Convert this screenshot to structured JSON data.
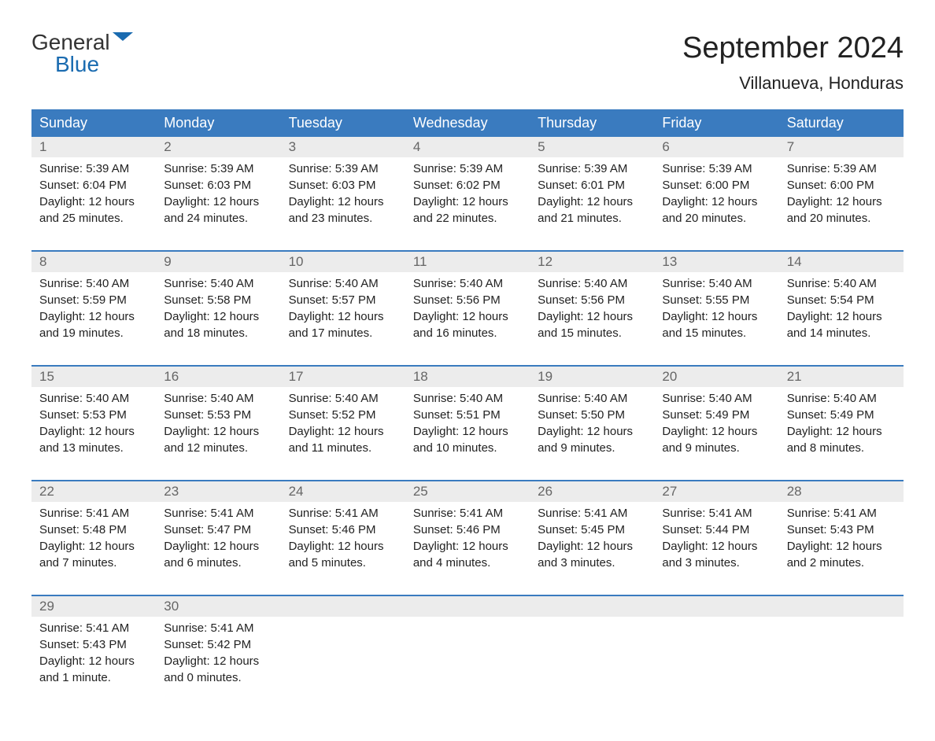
{
  "logo": {
    "top": "General",
    "bottom": "Blue",
    "top_color": "#333333",
    "bottom_color": "#1a6bb0",
    "flag_color": "#1a6bb0"
  },
  "header": {
    "month_title": "September 2024",
    "location": "Villanueva, Honduras"
  },
  "colors": {
    "header_bg": "#3a7bbf",
    "header_text": "#ffffff",
    "day_number_bg": "#ececec",
    "day_number_text": "#666666",
    "border": "#3a7bbf",
    "body_text": "#222222",
    "background": "#ffffff"
  },
  "day_names": [
    "Sunday",
    "Monday",
    "Tuesday",
    "Wednesday",
    "Thursday",
    "Friday",
    "Saturday"
  ],
  "weeks": [
    {
      "days": [
        {
          "num": "1",
          "sunrise": "Sunrise: 5:39 AM",
          "sunset": "Sunset: 6:04 PM",
          "daylight1": "Daylight: 12 hours",
          "daylight2": "and 25 minutes."
        },
        {
          "num": "2",
          "sunrise": "Sunrise: 5:39 AM",
          "sunset": "Sunset: 6:03 PM",
          "daylight1": "Daylight: 12 hours",
          "daylight2": "and 24 minutes."
        },
        {
          "num": "3",
          "sunrise": "Sunrise: 5:39 AM",
          "sunset": "Sunset: 6:03 PM",
          "daylight1": "Daylight: 12 hours",
          "daylight2": "and 23 minutes."
        },
        {
          "num": "4",
          "sunrise": "Sunrise: 5:39 AM",
          "sunset": "Sunset: 6:02 PM",
          "daylight1": "Daylight: 12 hours",
          "daylight2": "and 22 minutes."
        },
        {
          "num": "5",
          "sunrise": "Sunrise: 5:39 AM",
          "sunset": "Sunset: 6:01 PM",
          "daylight1": "Daylight: 12 hours",
          "daylight2": "and 21 minutes."
        },
        {
          "num": "6",
          "sunrise": "Sunrise: 5:39 AM",
          "sunset": "Sunset: 6:00 PM",
          "daylight1": "Daylight: 12 hours",
          "daylight2": "and 20 minutes."
        },
        {
          "num": "7",
          "sunrise": "Sunrise: 5:39 AM",
          "sunset": "Sunset: 6:00 PM",
          "daylight1": "Daylight: 12 hours",
          "daylight2": "and 20 minutes."
        }
      ]
    },
    {
      "days": [
        {
          "num": "8",
          "sunrise": "Sunrise: 5:40 AM",
          "sunset": "Sunset: 5:59 PM",
          "daylight1": "Daylight: 12 hours",
          "daylight2": "and 19 minutes."
        },
        {
          "num": "9",
          "sunrise": "Sunrise: 5:40 AM",
          "sunset": "Sunset: 5:58 PM",
          "daylight1": "Daylight: 12 hours",
          "daylight2": "and 18 minutes."
        },
        {
          "num": "10",
          "sunrise": "Sunrise: 5:40 AM",
          "sunset": "Sunset: 5:57 PM",
          "daylight1": "Daylight: 12 hours",
          "daylight2": "and 17 minutes."
        },
        {
          "num": "11",
          "sunrise": "Sunrise: 5:40 AM",
          "sunset": "Sunset: 5:56 PM",
          "daylight1": "Daylight: 12 hours",
          "daylight2": "and 16 minutes."
        },
        {
          "num": "12",
          "sunrise": "Sunrise: 5:40 AM",
          "sunset": "Sunset: 5:56 PM",
          "daylight1": "Daylight: 12 hours",
          "daylight2": "and 15 minutes."
        },
        {
          "num": "13",
          "sunrise": "Sunrise: 5:40 AM",
          "sunset": "Sunset: 5:55 PM",
          "daylight1": "Daylight: 12 hours",
          "daylight2": "and 15 minutes."
        },
        {
          "num": "14",
          "sunrise": "Sunrise: 5:40 AM",
          "sunset": "Sunset: 5:54 PM",
          "daylight1": "Daylight: 12 hours",
          "daylight2": "and 14 minutes."
        }
      ]
    },
    {
      "days": [
        {
          "num": "15",
          "sunrise": "Sunrise: 5:40 AM",
          "sunset": "Sunset: 5:53 PM",
          "daylight1": "Daylight: 12 hours",
          "daylight2": "and 13 minutes."
        },
        {
          "num": "16",
          "sunrise": "Sunrise: 5:40 AM",
          "sunset": "Sunset: 5:53 PM",
          "daylight1": "Daylight: 12 hours",
          "daylight2": "and 12 minutes."
        },
        {
          "num": "17",
          "sunrise": "Sunrise: 5:40 AM",
          "sunset": "Sunset: 5:52 PM",
          "daylight1": "Daylight: 12 hours",
          "daylight2": "and 11 minutes."
        },
        {
          "num": "18",
          "sunrise": "Sunrise: 5:40 AM",
          "sunset": "Sunset: 5:51 PM",
          "daylight1": "Daylight: 12 hours",
          "daylight2": "and 10 minutes."
        },
        {
          "num": "19",
          "sunrise": "Sunrise: 5:40 AM",
          "sunset": "Sunset: 5:50 PM",
          "daylight1": "Daylight: 12 hours",
          "daylight2": "and 9 minutes."
        },
        {
          "num": "20",
          "sunrise": "Sunrise: 5:40 AM",
          "sunset": "Sunset: 5:49 PM",
          "daylight1": "Daylight: 12 hours",
          "daylight2": "and 9 minutes."
        },
        {
          "num": "21",
          "sunrise": "Sunrise: 5:40 AM",
          "sunset": "Sunset: 5:49 PM",
          "daylight1": "Daylight: 12 hours",
          "daylight2": "and 8 minutes."
        }
      ]
    },
    {
      "days": [
        {
          "num": "22",
          "sunrise": "Sunrise: 5:41 AM",
          "sunset": "Sunset: 5:48 PM",
          "daylight1": "Daylight: 12 hours",
          "daylight2": "and 7 minutes."
        },
        {
          "num": "23",
          "sunrise": "Sunrise: 5:41 AM",
          "sunset": "Sunset: 5:47 PM",
          "daylight1": "Daylight: 12 hours",
          "daylight2": "and 6 minutes."
        },
        {
          "num": "24",
          "sunrise": "Sunrise: 5:41 AM",
          "sunset": "Sunset: 5:46 PM",
          "daylight1": "Daylight: 12 hours",
          "daylight2": "and 5 minutes."
        },
        {
          "num": "25",
          "sunrise": "Sunrise: 5:41 AM",
          "sunset": "Sunset: 5:46 PM",
          "daylight1": "Daylight: 12 hours",
          "daylight2": "and 4 minutes."
        },
        {
          "num": "26",
          "sunrise": "Sunrise: 5:41 AM",
          "sunset": "Sunset: 5:45 PM",
          "daylight1": "Daylight: 12 hours",
          "daylight2": "and 3 minutes."
        },
        {
          "num": "27",
          "sunrise": "Sunrise: 5:41 AM",
          "sunset": "Sunset: 5:44 PM",
          "daylight1": "Daylight: 12 hours",
          "daylight2": "and 3 minutes."
        },
        {
          "num": "28",
          "sunrise": "Sunrise: 5:41 AM",
          "sunset": "Sunset: 5:43 PM",
          "daylight1": "Daylight: 12 hours",
          "daylight2": "and 2 minutes."
        }
      ]
    },
    {
      "days": [
        {
          "num": "29",
          "sunrise": "Sunrise: 5:41 AM",
          "sunset": "Sunset: 5:43 PM",
          "daylight1": "Daylight: 12 hours",
          "daylight2": "and 1 minute."
        },
        {
          "num": "30",
          "sunrise": "Sunrise: 5:41 AM",
          "sunset": "Sunset: 5:42 PM",
          "daylight1": "Daylight: 12 hours",
          "daylight2": "and 0 minutes."
        },
        {
          "num": "",
          "sunrise": "",
          "sunset": "",
          "daylight1": "",
          "daylight2": ""
        },
        {
          "num": "",
          "sunrise": "",
          "sunset": "",
          "daylight1": "",
          "daylight2": ""
        },
        {
          "num": "",
          "sunrise": "",
          "sunset": "",
          "daylight1": "",
          "daylight2": ""
        },
        {
          "num": "",
          "sunrise": "",
          "sunset": "",
          "daylight1": "",
          "daylight2": ""
        },
        {
          "num": "",
          "sunrise": "",
          "sunset": "",
          "daylight1": "",
          "daylight2": ""
        }
      ]
    }
  ]
}
